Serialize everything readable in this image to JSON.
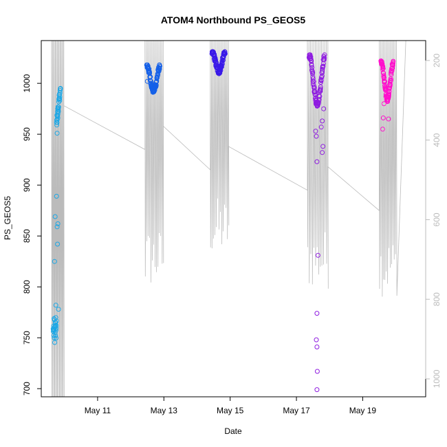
{
  "chart_data": {
    "type": "scatter",
    "title": "ATOM4 Northbound PS_GEOS5",
    "xlabel": "Date",
    "ylabel": "PS_GEOS5",
    "x_ticks": [
      "May 11",
      "May 13",
      "May 15",
      "May 17",
      "May 19"
    ],
    "x_tick_days": [
      11,
      13,
      15,
      17,
      19
    ],
    "xlim": [
      9.3,
      20.9
    ],
    "ylim": [
      692,
      1042
    ],
    "y_ticks": [
      700,
      750,
      800,
      850,
      900,
      950,
      1000
    ],
    "right_axis": {
      "ticks": [
        200,
        400,
        600,
        800,
        1000
      ],
      "lim": [
        1045,
        150
      ],
      "color": "#bbbbbb"
    },
    "background_trace_color": "#bbbbbb",
    "flights": [
      {
        "color": "#1aa7e6",
        "start": 9.66,
        "end": 9.88,
        "ymin": 745,
        "ymax": 995,
        "count": 55,
        "outliers": [
          [
            9.7,
            825
          ],
          [
            9.72,
            869
          ],
          [
            9.76,
            889
          ],
          [
            9.78,
            859
          ],
          [
            9.79,
            842
          ],
          [
            9.8,
            862
          ],
          [
            9.78,
            951
          ],
          [
            9.8,
            966
          ],
          [
            9.74,
            782
          ],
          [
            9.82,
            778
          ]
        ]
      },
      {
        "color": "#1560e8",
        "start": 12.48,
        "end": 12.88,
        "ymin": 993,
        "ymax": 1018,
        "count": 90,
        "outliers": [
          [
            12.5,
            1002
          ]
        ]
      },
      {
        "color": "#3a1ae8",
        "start": 14.45,
        "end": 14.85,
        "ymin": 1012,
        "ymax": 1031,
        "count": 90,
        "outliers": []
      },
      {
        "color": "#8f1ce0",
        "start": 17.38,
        "end": 17.85,
        "ymin": 980,
        "ymax": 1028,
        "count": 95,
        "outliers": [
          [
            17.62,
            923
          ],
          [
            17.58,
            953
          ],
          [
            17.6,
            948
          ],
          [
            17.65,
            831
          ],
          [
            17.62,
            774
          ],
          [
            17.6,
            748
          ],
          [
            17.62,
            741
          ],
          [
            17.63,
            717
          ],
          [
            17.62,
            699
          ],
          [
            17.78,
            932
          ],
          [
            17.8,
            938
          ],
          [
            17.75,
            957
          ],
          [
            17.78,
            963
          ],
          [
            17.82,
            975
          ]
        ]
      },
      {
        "color": "#ff10cc",
        "start": 19.55,
        "end": 19.92,
        "ymin": 985,
        "ymax": 1022,
        "count": 90,
        "outliers": [
          [
            19.6,
            955
          ],
          [
            19.62,
            966
          ],
          [
            19.64,
            980
          ],
          [
            19.78,
            965
          ]
        ]
      }
    ]
  }
}
